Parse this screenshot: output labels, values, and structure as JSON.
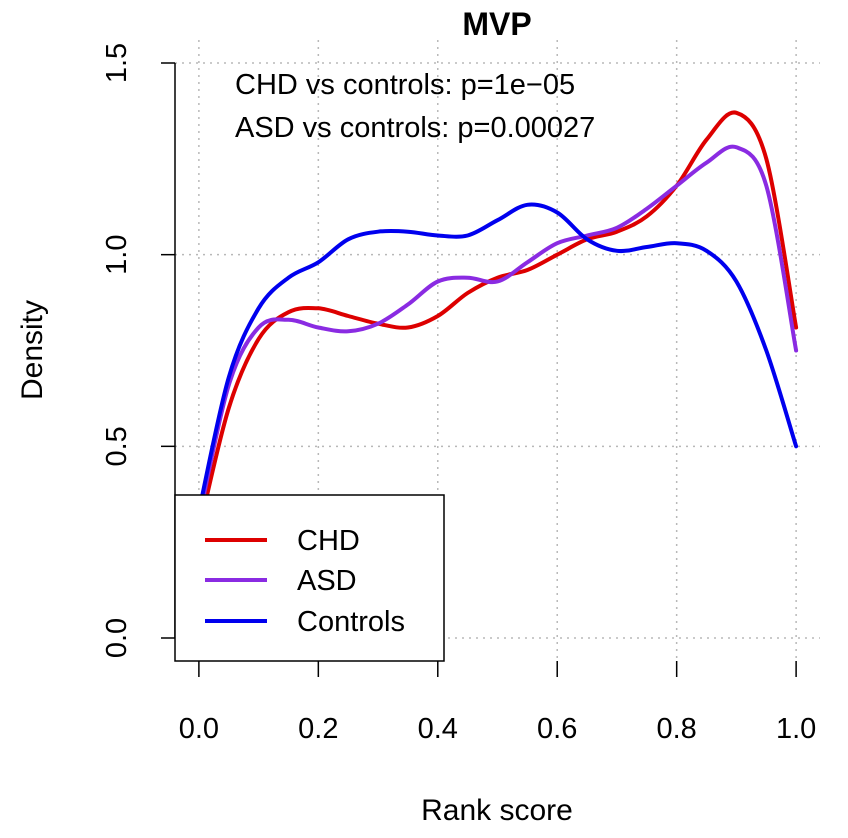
{
  "chart_data": {
    "type": "line",
    "title": "MVP",
    "xlabel": "Rank score",
    "ylabel": "Density",
    "xlim": [
      -0.04,
      1.04
    ],
    "ylim": [
      -0.06,
      1.56
    ],
    "x_ticks": [
      "0.0",
      "0.2",
      "0.4",
      "0.6",
      "0.8",
      "1.0"
    ],
    "y_ticks": [
      "0.0",
      "0.5",
      "1.0",
      "1.5"
    ],
    "grid": true,
    "legend_position": "bottom-left",
    "annotations": [
      "CHD vs controls: p=1e−05",
      "ASD vs controls: p=0.00027"
    ],
    "series": [
      {
        "name": "CHD",
        "color": "#dd0000",
        "x": [
          0.0,
          0.05,
          0.1,
          0.15,
          0.2,
          0.25,
          0.3,
          0.35,
          0.4,
          0.45,
          0.5,
          0.55,
          0.6,
          0.65,
          0.7,
          0.75,
          0.8,
          0.85,
          0.9,
          0.95,
          1.0
        ],
        "y": [
          0.28,
          0.6,
          0.78,
          0.85,
          0.86,
          0.84,
          0.82,
          0.81,
          0.84,
          0.9,
          0.94,
          0.96,
          1.0,
          1.04,
          1.06,
          1.1,
          1.18,
          1.3,
          1.37,
          1.25,
          0.81
        ]
      },
      {
        "name": "ASD",
        "color": "#8a2be2",
        "x": [
          0.0,
          0.05,
          0.1,
          0.15,
          0.2,
          0.25,
          0.3,
          0.35,
          0.4,
          0.45,
          0.5,
          0.55,
          0.6,
          0.65,
          0.7,
          0.75,
          0.8,
          0.85,
          0.9,
          0.95,
          1.0
        ],
        "y": [
          0.31,
          0.66,
          0.81,
          0.83,
          0.81,
          0.8,
          0.82,
          0.87,
          0.93,
          0.94,
          0.93,
          0.98,
          1.03,
          1.05,
          1.07,
          1.12,
          1.18,
          1.24,
          1.28,
          1.18,
          0.75
        ]
      },
      {
        "name": "Controls",
        "color": "#0000ee",
        "x": [
          0.0,
          0.05,
          0.1,
          0.15,
          0.2,
          0.25,
          0.3,
          0.35,
          0.4,
          0.45,
          0.5,
          0.55,
          0.6,
          0.65,
          0.7,
          0.75,
          0.8,
          0.85,
          0.9,
          0.95,
          1.0
        ],
        "y": [
          0.33,
          0.68,
          0.86,
          0.94,
          0.98,
          1.04,
          1.06,
          1.06,
          1.05,
          1.05,
          1.09,
          1.13,
          1.11,
          1.04,
          1.01,
          1.02,
          1.03,
          1.01,
          0.93,
          0.75,
          0.5
        ]
      }
    ]
  }
}
